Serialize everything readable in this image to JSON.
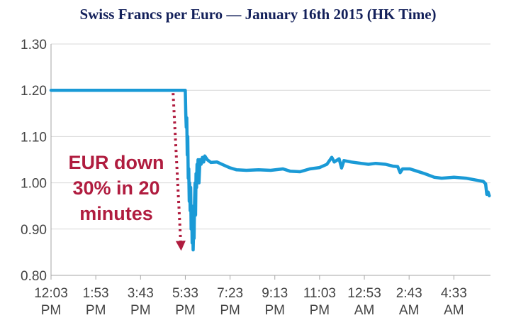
{
  "chart_data": {
    "type": "line",
    "title": "Swiss Francs per Euro — January 16th 2015 (HK Time)",
    "xlabel": "",
    "ylabel": "",
    "ylim": [
      0.8,
      1.3
    ],
    "y_ticks": [
      "0.80",
      "0.90",
      "1.00",
      "1.10",
      "1.20",
      "1.30"
    ],
    "x_ticks": [
      {
        "hour": 0.0,
        "line1": "12:03",
        "line2": "PM"
      },
      {
        "hour": 1.8333,
        "line1": "1:53",
        "line2": "PM"
      },
      {
        "hour": 3.6667,
        "line1": "3:43",
        "line2": "PM"
      },
      {
        "hour": 5.5,
        "line1": "5:33",
        "line2": "PM"
      },
      {
        "hour": 7.3333,
        "line1": "7:23",
        "line2": "PM"
      },
      {
        "hour": 9.1667,
        "line1": "9:13",
        "line2": "PM"
      },
      {
        "hour": 11.0,
        "line1": "11:03",
        "line2": "PM"
      },
      {
        "hour": 12.8333,
        "line1": "12:53",
        "line2": "AM"
      },
      {
        "hour": 14.6667,
        "line1": "2:43",
        "line2": "AM"
      },
      {
        "hour": 16.5,
        "line1": "4:33",
        "line2": "AM"
      }
    ],
    "xlim": [
      0,
      18.0
    ],
    "grid": "horizontal",
    "line_color": "#1a9ad6",
    "series": [
      {
        "points": [
          [
            0.0,
            1.2
          ],
          [
            5.45,
            1.2
          ],
          [
            5.5,
            1.2
          ],
          [
            5.52,
            1.15
          ],
          [
            5.54,
            1.12
          ],
          [
            5.56,
            1.14
          ],
          [
            5.58,
            1.06
          ],
          [
            5.6,
            1.1
          ],
          [
            5.62,
            1.01
          ],
          [
            5.64,
            1.03
          ],
          [
            5.66,
            0.96
          ],
          [
            5.68,
            1.0
          ],
          [
            5.7,
            0.94
          ],
          [
            5.72,
            0.99
          ],
          [
            5.74,
            0.9
          ],
          [
            5.76,
            0.95
          ],
          [
            5.78,
            0.87
          ],
          [
            5.8,
            0.92
          ],
          [
            5.82,
            0.855
          ],
          [
            5.84,
            0.9
          ],
          [
            5.86,
            0.88
          ],
          [
            5.88,
            0.96
          ],
          [
            5.9,
            1.0
          ],
          [
            5.92,
            0.93
          ],
          [
            5.94,
            1.02
          ],
          [
            5.96,
            0.99
          ],
          [
            5.98,
            1.04
          ],
          [
            6.0,
            1.0
          ],
          [
            6.02,
            1.05
          ],
          [
            6.04,
            1.03
          ],
          [
            6.06,
            1.0
          ],
          [
            6.1,
            1.05
          ],
          [
            6.15,
            1.04
          ],
          [
            6.2,
            1.055
          ],
          [
            6.25,
            1.045
          ],
          [
            6.3,
            1.058
          ],
          [
            6.4,
            1.05
          ],
          [
            6.55,
            1.044
          ],
          [
            6.8,
            1.045
          ],
          [
            7.0,
            1.04
          ],
          [
            7.3,
            1.033
          ],
          [
            7.6,
            1.028
          ],
          [
            8.0,
            1.027
          ],
          [
            8.5,
            1.028
          ],
          [
            9.0,
            1.027
          ],
          [
            9.5,
            1.03
          ],
          [
            9.8,
            1.025
          ],
          [
            10.2,
            1.024
          ],
          [
            10.6,
            1.03
          ],
          [
            11.0,
            1.033
          ],
          [
            11.3,
            1.04
          ],
          [
            11.5,
            1.055
          ],
          [
            11.6,
            1.045
          ],
          [
            11.8,
            1.052
          ],
          [
            11.9,
            1.032
          ],
          [
            12.0,
            1.048
          ],
          [
            12.3,
            1.045
          ],
          [
            12.7,
            1.042
          ],
          [
            13.0,
            1.04
          ],
          [
            13.3,
            1.042
          ],
          [
            13.7,
            1.04
          ],
          [
            14.0,
            1.036
          ],
          [
            14.2,
            1.035
          ],
          [
            14.3,
            1.022
          ],
          [
            14.4,
            1.03
          ],
          [
            14.7,
            1.03
          ],
          [
            15.0,
            1.025
          ],
          [
            15.3,
            1.02
          ],
          [
            15.7,
            1.012
          ],
          [
            16.0,
            1.01
          ],
          [
            16.5,
            1.012
          ],
          [
            17.0,
            1.01
          ],
          [
            17.4,
            1.006
          ],
          [
            17.7,
            1.003
          ],
          [
            17.8,
            0.998
          ],
          [
            17.85,
            0.975
          ],
          [
            17.9,
            0.98
          ],
          [
            17.95,
            0.972
          ]
        ]
      }
    ],
    "annotation": {
      "lines": [
        "EUR down",
        "30% in 20",
        "minutes"
      ],
      "color": "#b01c3f",
      "arrow_from": [
        5.0,
        1.2
      ],
      "arrow_to": [
        5.33,
        0.853
      ]
    }
  }
}
